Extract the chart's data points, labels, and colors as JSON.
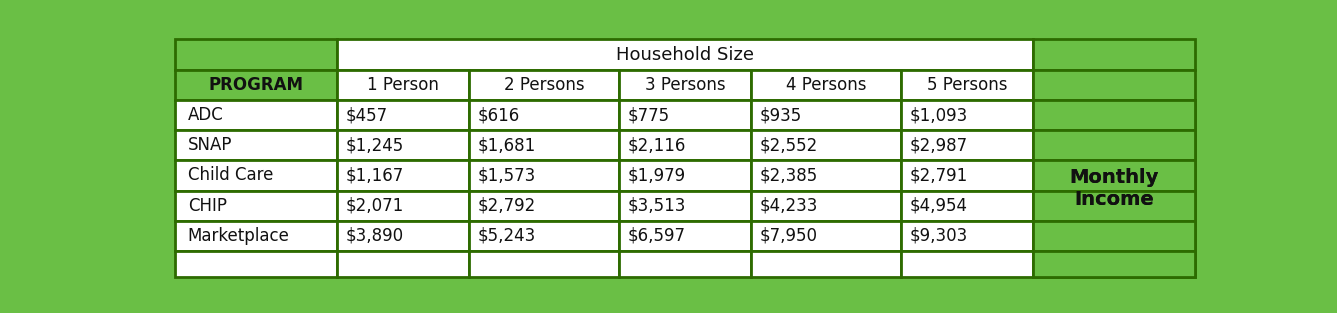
{
  "title": "Household Size",
  "col_headers": [
    "1 Person",
    "2 Persons",
    "3 Persons",
    "4 Persons",
    "5 Persons"
  ],
  "row_labels": [
    "PROGRAM",
    "ADC",
    "SNAP",
    "Child Care",
    "CHIP",
    "Marketplace",
    ""
  ],
  "data": [
    [
      "$457",
      "$616",
      "$775",
      "$935",
      "$1,093"
    ],
    [
      "$1,245",
      "$1,681",
      "$2,116",
      "$2,552",
      "$2,987"
    ],
    [
      "$1,167",
      "$1,573",
      "$1,979",
      "$2,385",
      "$2,791"
    ],
    [
      "$2,071",
      "$2,792",
      "$3,513",
      "$4,233",
      "$4,954"
    ],
    [
      "$3,890",
      "$5,243",
      "$6,597",
      "$7,950",
      "$9,303"
    ],
    [
      "",
      "",
      "",
      "",
      ""
    ]
  ],
  "side_label": "Monthly\nIncome",
  "green": "#6abf45",
  "border": "#2d6b00",
  "white": "#ffffff",
  "black": "#111111",
  "col_widths_rel": [
    1.35,
    1.1,
    1.25,
    1.1,
    1.25,
    1.1,
    1.35
  ],
  "row_heights_rel": [
    1.0,
    1.0,
    1.0,
    1.0,
    1.0,
    1.0,
    1.0,
    0.85
  ],
  "font_size_header": 13,
  "font_size_data": 12,
  "font_size_side": 14
}
